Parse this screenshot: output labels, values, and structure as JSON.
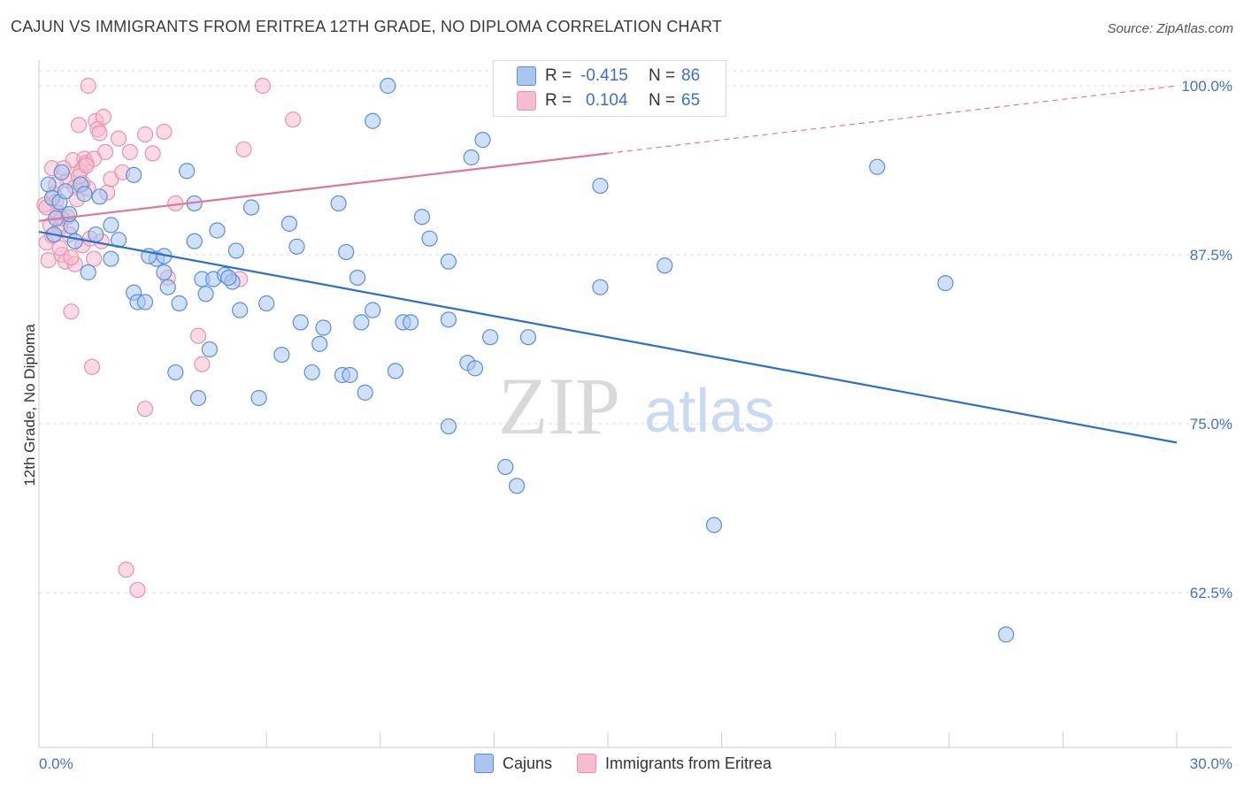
{
  "title": "CAJUN VS IMMIGRANTS FROM ERITREA 12TH GRADE, NO DIPLOMA CORRELATION CHART",
  "source": "Source: ZipAtlas.com",
  "watermark": {
    "zip": "ZIP",
    "atlas": "atlas"
  },
  "stats": {
    "r_label": "R =",
    "n_label": "N =",
    "rows": [
      {
        "r": "-0.415",
        "n": "86"
      },
      {
        "r": "0.104",
        "n": "65"
      }
    ]
  },
  "legend": {
    "series1": "Cajuns",
    "series2": "Immigrants from Eritrea"
  },
  "colors": {
    "blue_fill": "#aac6ee",
    "blue_stroke": "#5b8fd6",
    "blue_line": "#2a6fcf",
    "pink_fill": "#f6bcd0",
    "pink_stroke": "#e792ad",
    "pink_line": "#e3739a",
    "axis_label": "#4272c7",
    "grid": "#dedede"
  },
  "chart_data": {
    "type": "scatter",
    "title": "CAJUN VS IMMIGRANTS FROM ERITREA 12TH GRADE, NO DIPLOMA CORRELATION CHART",
    "xlabel": "",
    "ylabel": "12th Grade, No Diploma",
    "xlim": [
      0,
      30
    ],
    "ylim": [
      50,
      100.5
    ],
    "x_tick_labels": [
      "0.0%",
      "30.0%"
    ],
    "y_ticks": [
      62.5,
      75.0,
      87.5,
      100.0
    ],
    "y_tick_labels": [
      "62.5%",
      "75.0%",
      "87.5%",
      "100.0%"
    ],
    "legend_position": "bottom-center",
    "series": [
      {
        "name": "Cajuns",
        "R": -0.415,
        "N": 86,
        "trend": {
          "x": [
            0,
            30
          ],
          "y": [
            89.2,
            73.6
          ],
          "dashed_from": null
        },
        "points": [
          [
            0.25,
            92.7
          ],
          [
            0.35,
            91.7
          ],
          [
            0.45,
            90.2
          ],
          [
            0.55,
            91.4
          ],
          [
            0.6,
            93.6
          ],
          [
            0.7,
            92.2
          ],
          [
            0.85,
            89.6
          ],
          [
            0.95,
            88.5
          ],
          [
            1.1,
            92.7
          ],
          [
            1.2,
            92.0
          ],
          [
            1.3,
            86.2
          ],
          [
            1.5,
            89.0
          ],
          [
            1.9,
            89.7
          ],
          [
            1.9,
            87.2
          ],
          [
            2.1,
            88.6
          ],
          [
            2.5,
            93.4
          ],
          [
            2.5,
            84.7
          ],
          [
            2.6,
            84.0
          ],
          [
            2.8,
            84.0
          ],
          [
            3.1,
            87.2
          ],
          [
            3.3,
            87.4
          ],
          [
            3.3,
            86.2
          ],
          [
            3.4,
            85.1
          ],
          [
            3.6,
            78.8
          ],
          [
            3.7,
            83.9
          ],
          [
            3.9,
            93.7
          ],
          [
            4.1,
            91.3
          ],
          [
            4.1,
            88.5
          ],
          [
            4.2,
            76.9
          ],
          [
            4.3,
            85.7
          ],
          [
            4.4,
            84.6
          ],
          [
            4.5,
            80.5
          ],
          [
            4.6,
            85.7
          ],
          [
            4.7,
            89.3
          ],
          [
            4.9,
            86.0
          ],
          [
            5.1,
            85.5
          ],
          [
            5.2,
            87.8
          ],
          [
            5.3,
            83.4
          ],
          [
            5.6,
            91.0
          ],
          [
            5.8,
            76.9
          ],
          [
            6.0,
            83.9
          ],
          [
            6.4,
            80.1
          ],
          [
            6.6,
            89.8
          ],
          [
            6.8,
            88.1
          ],
          [
            6.9,
            82.5
          ],
          [
            7.2,
            78.8
          ],
          [
            7.4,
            80.9
          ],
          [
            7.5,
            82.1
          ],
          [
            7.9,
            91.3
          ],
          [
            8.0,
            78.6
          ],
          [
            8.1,
            87.7
          ],
          [
            8.2,
            78.6
          ],
          [
            8.4,
            85.8
          ],
          [
            8.5,
            82.5
          ],
          [
            8.6,
            77.3
          ],
          [
            8.8,
            83.4
          ],
          [
            8.8,
            97.4
          ],
          [
            9.2,
            100.0
          ],
          [
            9.4,
            78.9
          ],
          [
            9.6,
            82.5
          ],
          [
            9.8,
            82.5
          ],
          [
            10.1,
            90.3
          ],
          [
            10.3,
            88.7
          ],
          [
            10.8,
            82.7
          ],
          [
            10.8,
            74.8
          ],
          [
            10.8,
            87.0
          ],
          [
            11.3,
            79.5
          ],
          [
            11.4,
            94.7
          ],
          [
            11.5,
            79.1
          ],
          [
            11.7,
            96.0
          ],
          [
            11.9,
            81.4
          ],
          [
            12.3,
            71.8
          ],
          [
            12.6,
            70.4
          ],
          [
            12.9,
            81.4
          ],
          [
            14.8,
            92.6
          ],
          [
            14.8,
            85.1
          ],
          [
            16.5,
            86.7
          ],
          [
            17.8,
            67.5
          ],
          [
            22.1,
            94.0
          ],
          [
            23.9,
            85.4
          ],
          [
            25.5,
            59.4
          ],
          [
            0.4,
            89.0
          ],
          [
            0.8,
            90.5
          ],
          [
            1.6,
            91.8
          ],
          [
            2.9,
            87.4
          ],
          [
            5.0,
            85.8
          ]
        ]
      },
      {
        "name": "Immigrants from Eritrea",
        "R": 0.104,
        "N": 65,
        "trend": {
          "x": [
            0,
            30
          ],
          "y": [
            90.0,
            100.0
          ],
          "dashed_from": 15.0
        },
        "points": [
          [
            0.15,
            91.2
          ],
          [
            0.2,
            88.4
          ],
          [
            0.25,
            87.1
          ],
          [
            0.3,
            89.7
          ],
          [
            0.35,
            93.9
          ],
          [
            0.4,
            92.0
          ],
          [
            0.45,
            91.4
          ],
          [
            0.5,
            90.6
          ],
          [
            0.55,
            89.5
          ],
          [
            0.6,
            87.5
          ],
          [
            0.7,
            87.0
          ],
          [
            0.75,
            93.0
          ],
          [
            0.8,
            89.0
          ],
          [
            0.85,
            83.3
          ],
          [
            0.9,
            94.5
          ],
          [
            0.95,
            92.5
          ],
          [
            1.0,
            91.6
          ],
          [
            1.05,
            97.1
          ],
          [
            1.1,
            93.7
          ],
          [
            1.15,
            88.2
          ],
          [
            1.2,
            94.6
          ],
          [
            1.25,
            94.3
          ],
          [
            1.3,
            92.4
          ],
          [
            1.35,
            88.7
          ],
          [
            1.4,
            79.2
          ],
          [
            1.45,
            87.2
          ],
          [
            1.5,
            97.4
          ],
          [
            1.55,
            96.8
          ],
          [
            1.6,
            96.5
          ],
          [
            1.7,
            97.7
          ],
          [
            1.75,
            95.1
          ],
          [
            1.8,
            92.1
          ],
          [
            1.9,
            93.1
          ],
          [
            2.1,
            96.1
          ],
          [
            2.2,
            93.6
          ],
          [
            2.4,
            95.1
          ],
          [
            2.3,
            64.2
          ],
          [
            2.6,
            62.7
          ],
          [
            2.8,
            96.4
          ],
          [
            2.8,
            76.1
          ],
          [
            3.0,
            95.0
          ],
          [
            3.3,
            96.6
          ],
          [
            3.4,
            85.8
          ],
          [
            3.6,
            91.3
          ],
          [
            4.2,
            81.5
          ],
          [
            4.3,
            79.4
          ],
          [
            5.3,
            85.7
          ],
          [
            5.4,
            95.3
          ],
          [
            5.9,
            100.0
          ],
          [
            6.7,
            97.5
          ],
          [
            1.3,
            100.0
          ],
          [
            0.55,
            88.0
          ],
          [
            0.65,
            93.9
          ],
          [
            0.95,
            86.8
          ],
          [
            1.15,
            92.8
          ],
          [
            1.45,
            94.6
          ],
          [
            1.65,
            88.5
          ],
          [
            0.35,
            88.9
          ],
          [
            0.75,
            90.3
          ],
          [
            1.05,
            93.3
          ],
          [
            0.2,
            91.0
          ],
          [
            0.45,
            92.7
          ],
          [
            0.85,
            87.3
          ],
          [
            1.25,
            94.1
          ],
          [
            0.6,
            90.2
          ]
        ]
      }
    ]
  }
}
